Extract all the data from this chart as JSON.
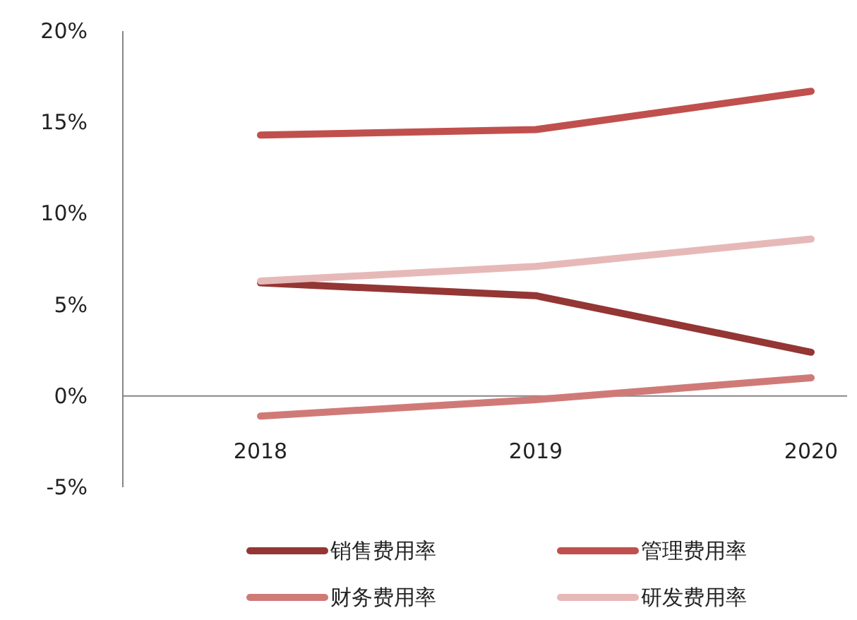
{
  "chart_data": {
    "type": "line",
    "categories": [
      "2018",
      "2019",
      "2020"
    ],
    "series": [
      {
        "name": "销售费用率",
        "color": "#943634",
        "values": [
          6.2,
          5.5,
          2.4
        ]
      },
      {
        "name": "管理费用率",
        "color": "#c0504d",
        "values": [
          14.3,
          14.6,
          16.7
        ]
      },
      {
        "name": "财务费用率",
        "color": "#d07a78",
        "values": [
          -1.1,
          -0.2,
          1.0
        ]
      },
      {
        "name": "研发费用率",
        "color": "#e6b9b8",
        "values": [
          6.3,
          7.1,
          8.6
        ]
      }
    ],
    "ylim": [
      -5,
      20
    ],
    "yticks": [
      {
        "value": -5,
        "label": "-5%"
      },
      {
        "value": 0,
        "label": "0%"
      },
      {
        "value": 5,
        "label": "5%"
      },
      {
        "value": 10,
        "label": "10%"
      },
      {
        "value": 15,
        "label": "15%"
      },
      {
        "value": 20,
        "label": "20%"
      }
    ],
    "grid": false,
    "legend": "bottom",
    "marker": "none",
    "line_style": "solid"
  }
}
